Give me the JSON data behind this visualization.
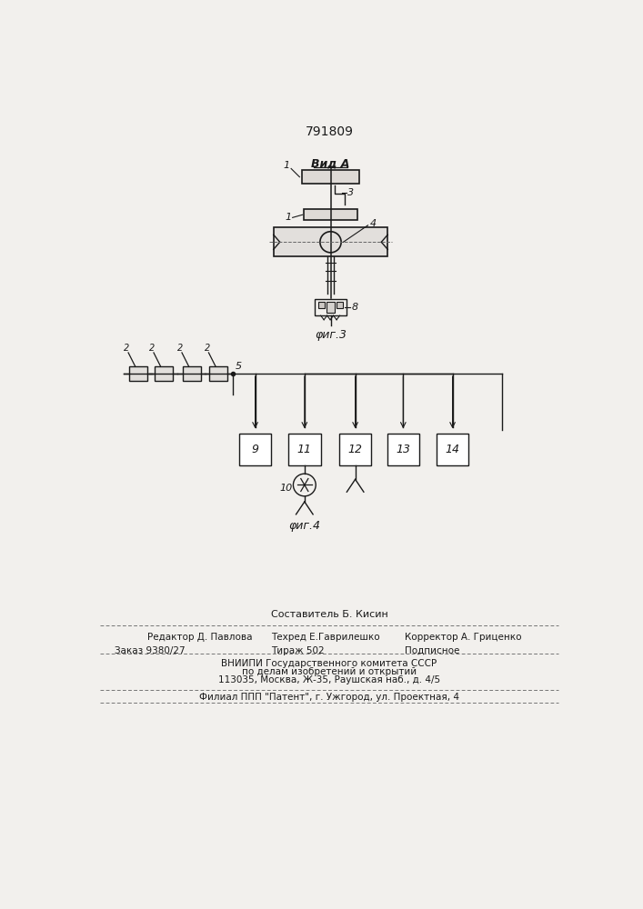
{
  "patent_number": "791809",
  "vid_a_label": "Вид А",
  "fig3_caption": "φиг.3",
  "fig4_caption": "φиг.4",
  "background": "#f2f0ed",
  "line_color": "#1a1a1a",
  "footer_sostavitel": "Составитель Б. Кисин",
  "footer_redaktor": "Редактор Д. Павлова",
  "footer_tehred": "Техред Е.Гаврилешко",
  "footer_korrektor": "Корректор А. Гриценко",
  "footer_zakaz": "Заказ 9380/27",
  "footer_tirazh": "Тираж 502",
  "footer_podpisnoe": "Подписное",
  "footer_vniip1": "ВНИИПИ Государственного комитета СССР",
  "footer_vniip2": "по делам изобретений и открытий",
  "footer_addr": "113035, Москва, Ж-35, Раушская наб., д. 4/5",
  "footer_filial": "Филиал ППП \"Патент\", г. Ужгород, ул. Проектная, 4"
}
